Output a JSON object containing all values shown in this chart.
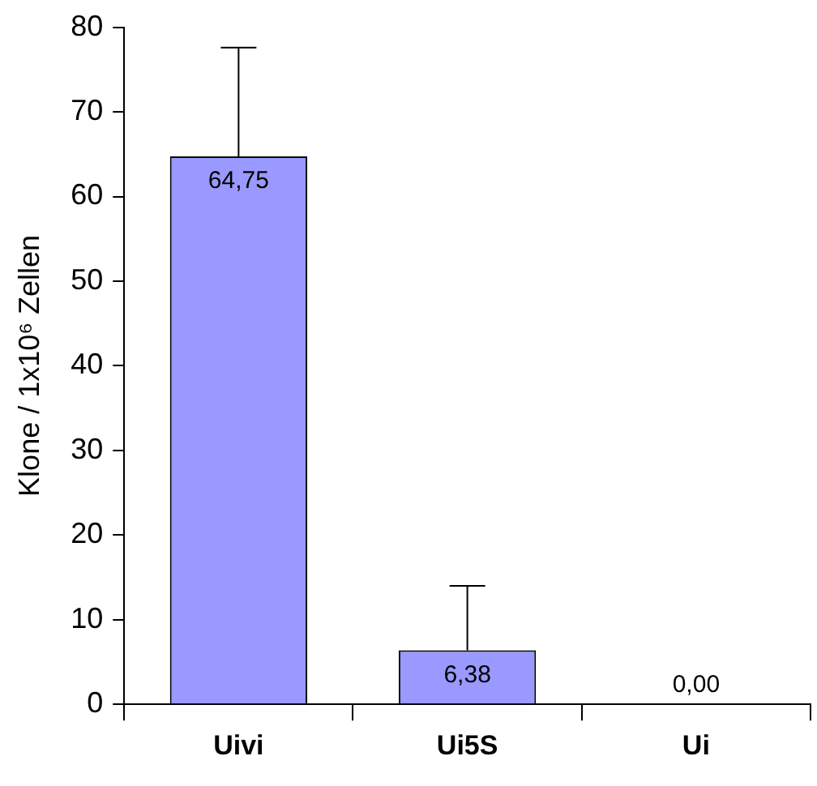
{
  "chart_data": {
    "type": "bar",
    "ylabel": "Klone / 1x10⁶ Zellen",
    "categories": [
      "Uivi",
      "Ui5S",
      "Ui"
    ],
    "values": [
      64.75,
      6.38,
      0
    ],
    "errors": [
      [
        64.75,
        77.6
      ],
      [
        6.38,
        14
      ],
      null
    ],
    "value_labels": [
      "64,75",
      "6,38",
      "0,00"
    ],
    "color": "#9999ff",
    "ylim": [
      0,
      80
    ],
    "yticks": [
      0,
      10,
      20,
      30,
      40,
      50,
      60,
      70,
      80
    ],
    "grid": false,
    "legend": false
  }
}
